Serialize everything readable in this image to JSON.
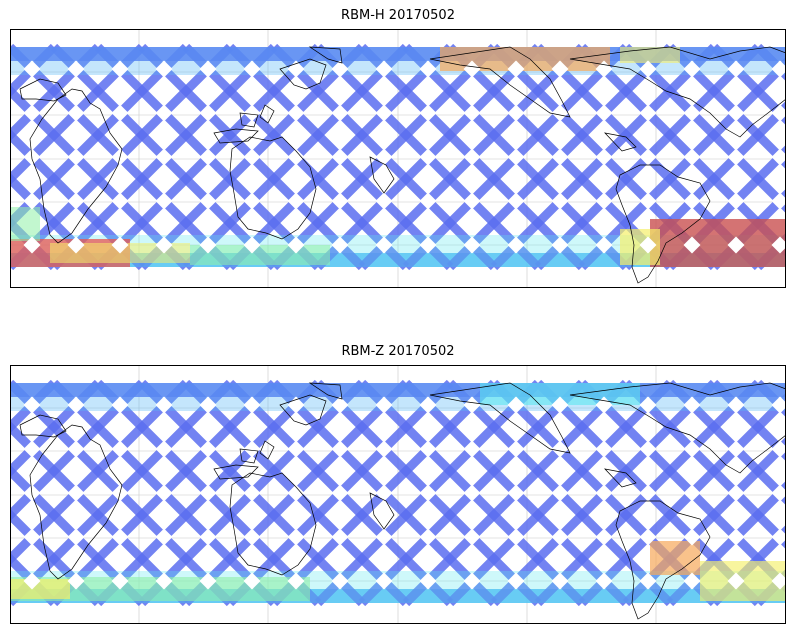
{
  "panels": [
    {
      "title": "RBM-H 20170502",
      "colors": {
        "cool": "#5b6ef0",
        "mid": "#55b6f5",
        "cyan": "#5ee8f0",
        "green": "#8ff0a8",
        "yellow": "#f5ef6a",
        "orange": "#f7a85a",
        "red": "#e8564f",
        "dark_red": "#c95050"
      }
    },
    {
      "title": "RBM-Z 20170502",
      "colors": {
        "cool": "#5b6ef0",
        "mid": "#55b6f5",
        "cyan": "#5ee8f0",
        "green": "#8ff0a8",
        "yellow": "#f5ef6a",
        "orange": "#f7a85a",
        "red": "#e8564f",
        "dark_red": "#c95050"
      }
    }
  ],
  "map_style": {
    "frame_color": "#000000",
    "coastline_color": "#000000",
    "grid_color": "#c8c8c8",
    "grid": true
  }
}
